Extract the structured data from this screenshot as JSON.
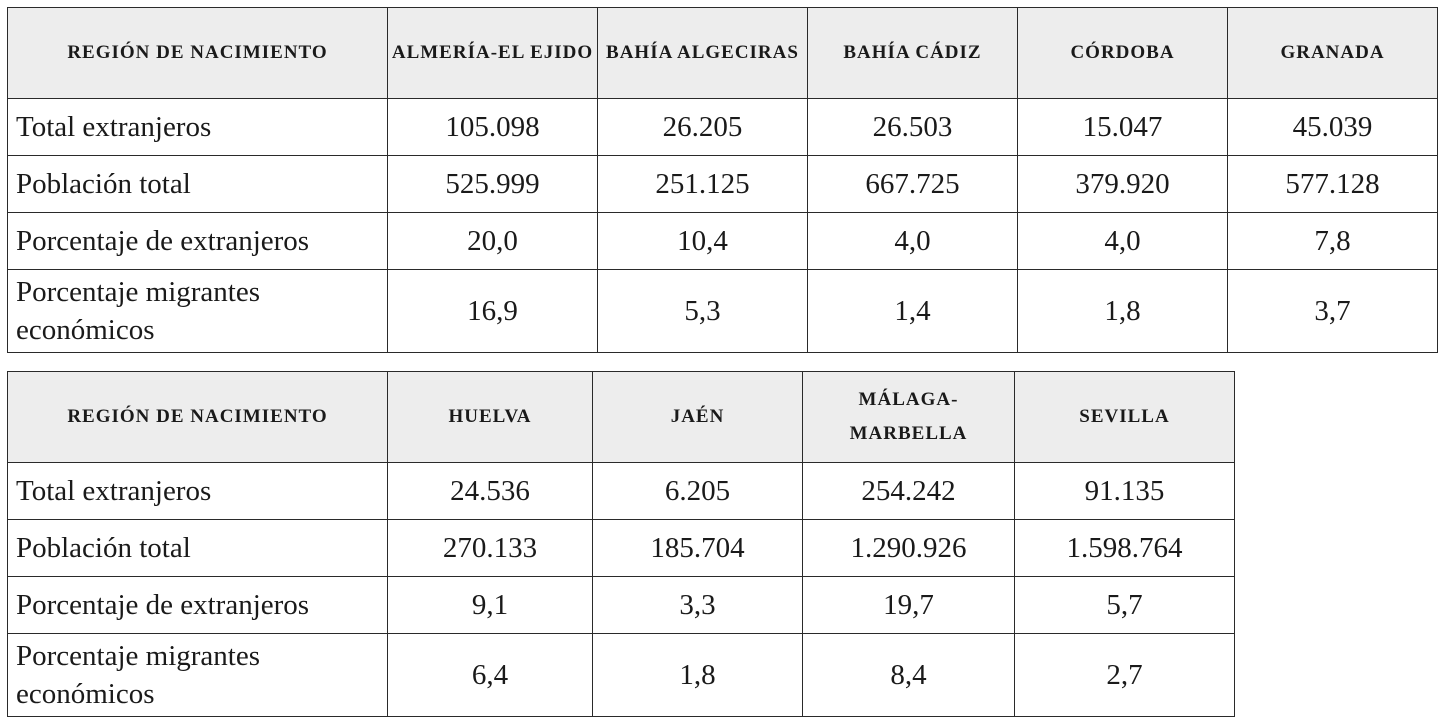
{
  "tables": [
    {
      "header": [
        "REGIÓN DE NACIMIENTO",
        "ALMERÍA-EL EJIDO",
        "BAHÍA ALGECIRAS",
        "BAHÍA CÁDIZ",
        "CÓRDOBA",
        "GRANADA"
      ],
      "rows": [
        [
          "Total extranjeros",
          "105.098",
          "26.205",
          "26.503",
          "15.047",
          "45.039"
        ],
        [
          "Población total",
          "525.999",
          "251.125",
          "667.725",
          "379.920",
          "577.128"
        ],
        [
          "Porcentaje de extranjeros",
          "20,0",
          "10,4",
          "4,0",
          "4,0",
          "7,8"
        ],
        [
          "Porcentaje migrantes económicos",
          "16,9",
          "5,3",
          "1,4",
          "1,8",
          "3,7"
        ]
      ]
    },
    {
      "header": [
        "REGIÓN DE NACIMIENTO",
        "HUELVA",
        "JAÉN",
        "MÁLAGA-MARBELLA",
        "SEVILLA"
      ],
      "rows": [
        [
          "Total extranjeros",
          "24.536",
          "6.205",
          "254.242",
          "91.135"
        ],
        [
          "Población total",
          "270.133",
          "185.704",
          "1.290.926",
          "1.598.764"
        ],
        [
          "Porcentaje de extranjeros",
          "9,1",
          "3,3",
          "19,7",
          "5,7"
        ],
        [
          "Porcentaje migrantes económicos",
          "6,4",
          "1,8",
          "8,4",
          "2,7"
        ]
      ]
    }
  ],
  "colors": {
    "header_bg": "#ededed",
    "border": "#2a2a2a"
  }
}
